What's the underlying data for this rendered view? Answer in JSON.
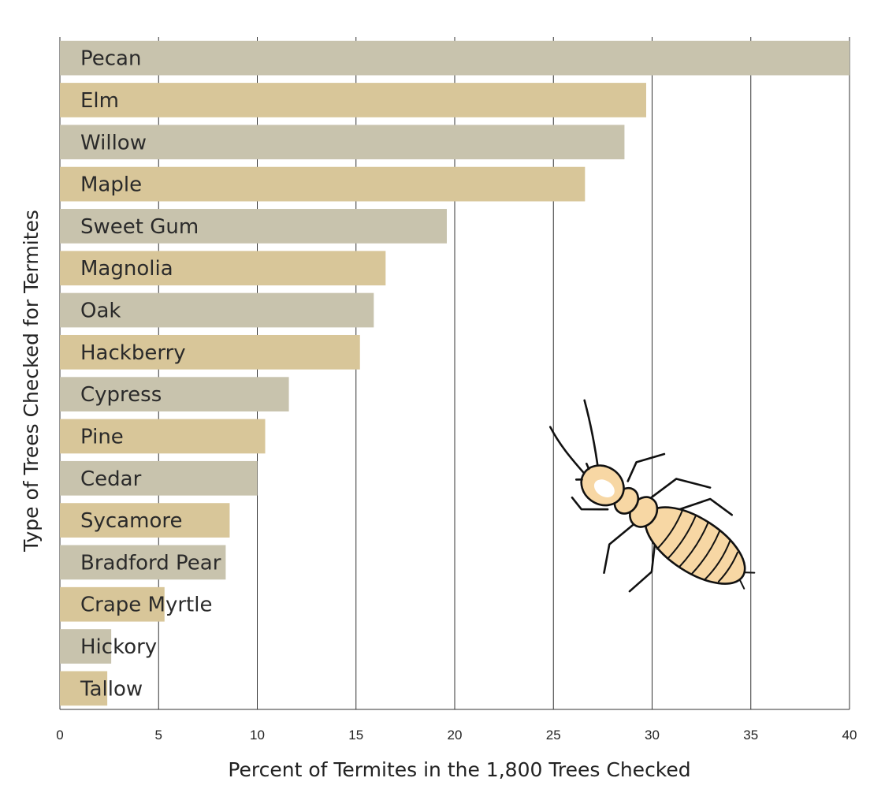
{
  "colors": {
    "bar_gray": "#c8c3ad",
    "bar_tan": "#d8c699",
    "grid": "#333333",
    "text": "#2a2a2a",
    "termite_body": "#f7d7a4",
    "termite_outline": "#111111"
  },
  "decoration": {
    "icon": "termite-icon"
  },
  "chart_data": {
    "type": "bar",
    "orientation": "horizontal",
    "xlabel": "Percent of  Termites in the 1,800 Trees Checked",
    "ylabel": "Type of Trees Checked for Termites",
    "xlim": [
      0,
      40
    ],
    "xticks": [
      0,
      5,
      10,
      15,
      20,
      25,
      30,
      35,
      40
    ],
    "grid": "vertical",
    "legend": "none",
    "categories": [
      "Pecan",
      "Elm",
      "Willow",
      "Maple",
      "Sweet Gum",
      "Magnolia",
      "Oak",
      "Hackberry",
      "Cypress",
      "Pine",
      "Cedar",
      "Sycamore",
      "Bradford Pear",
      "Crape Myrtle",
      "Hickory",
      "Tallow"
    ],
    "values": [
      40,
      29.7,
      28.6,
      26.6,
      19.6,
      16.5,
      15.9,
      15.2,
      11.6,
      10.4,
      10,
      8.6,
      8.4,
      5.3,
      2.6,
      2.4
    ],
    "bar_colors": [
      "#c8c3ad",
      "#d8c699",
      "#c8c3ad",
      "#d8c699",
      "#c8c3ad",
      "#d8c699",
      "#c8c3ad",
      "#d8c699",
      "#c8c3ad",
      "#d8c699",
      "#c8c3ad",
      "#d8c699",
      "#c8c3ad",
      "#d8c699",
      "#c8c3ad",
      "#d8c699"
    ]
  }
}
